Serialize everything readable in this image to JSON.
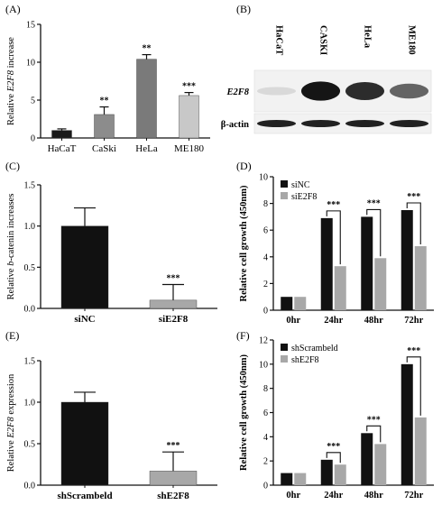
{
  "panel_labels": [
    "(A)",
    "(B)",
    "(C)",
    "(D)",
    "(E)",
    "(F)"
  ],
  "blot": {
    "lanes": [
      "HaCaT",
      "CASKI",
      "HeLa",
      "ME180"
    ],
    "rows": [
      {
        "label": "E2F8",
        "intensities": [
          0.08,
          0.95,
          0.85,
          0.6
        ]
      },
      {
        "label": "β-actin",
        "intensities": [
          0.9,
          0.9,
          0.9,
          0.9
        ]
      }
    ]
  },
  "chart_data": [
    {
      "panel": "A",
      "type": "bar",
      "ylabel_prefix": "Relative ",
      "ylabel_italic": "E2F8",
      "ylabel_suffix": " increase",
      "categories": [
        "HaCaT",
        "CaSki",
        "HeLa",
        "ME180"
      ],
      "values": [
        1.0,
        3.1,
        10.4,
        5.6
      ],
      "errors": [
        0.2,
        1.0,
        0.6,
        0.4
      ],
      "colors": [
        "#1a1a1a",
        "#8c8c8c",
        "#7a7a7a",
        "#c8c8c8"
      ],
      "significance": [
        "",
        "**",
        "**",
        "***"
      ],
      "ylim": [
        0,
        15
      ],
      "yticks": [
        0,
        5,
        10,
        15
      ]
    },
    {
      "panel": "C",
      "type": "bar",
      "ylabel_prefix": "Relative ",
      "ylabel_italic": "b",
      "ylabel_suffix": "-catenin increases",
      "categories": [
        "siNC",
        "siE2F8"
      ],
      "values": [
        1.0,
        0.1
      ],
      "errors": [
        0.22,
        0.19
      ],
      "colors": [
        "#111111",
        "#a8a8a8"
      ],
      "significance": [
        "",
        "***"
      ],
      "ylim": [
        0,
        1.5
      ],
      "yticks": [
        "0.0",
        "0.5",
        "1.0",
        "1.5"
      ]
    },
    {
      "panel": "D",
      "type": "bar",
      "ylabel": "Relative cell growth (450nm)",
      "categories": [
        "0hr",
        "24hr",
        "48hr",
        "72hr"
      ],
      "series": [
        {
          "name": "siNC",
          "values": [
            1.0,
            6.9,
            7.0,
            7.5
          ],
          "color": "#111111"
        },
        {
          "name": "siE2F8",
          "values": [
            1.0,
            3.3,
            3.9,
            4.8
          ],
          "color": "#a8a8a8"
        }
      ],
      "significance": [
        "",
        "***",
        "***",
        "***"
      ],
      "ylim": [
        0,
        10
      ],
      "yticks": [
        0,
        2,
        4,
        6,
        8,
        10
      ],
      "legend": "top-left"
    },
    {
      "panel": "E",
      "type": "bar",
      "ylabel_prefix": "Relative ",
      "ylabel_italic": "E2F8",
      "ylabel_suffix": " expression",
      "categories": [
        "shScrambeld",
        "shE2F8"
      ],
      "values": [
        1.0,
        0.17
      ],
      "errors": [
        0.12,
        0.23
      ],
      "colors": [
        "#111111",
        "#a8a8a8"
      ],
      "significance": [
        "",
        "***"
      ],
      "ylim": [
        0,
        1.5
      ],
      "yticks": [
        "0.0",
        "0.5",
        "1.0",
        "1.5"
      ]
    },
    {
      "panel": "F",
      "type": "bar",
      "ylabel": "Relative cell growth (450nm)",
      "categories": [
        "0hr",
        "24hr",
        "48hr",
        "72hr"
      ],
      "series": [
        {
          "name": "shScrambeld",
          "values": [
            1.0,
            2.1,
            4.3,
            10.0
          ],
          "color": "#111111"
        },
        {
          "name": "shE2F8",
          "values": [
            1.0,
            1.7,
            3.4,
            5.6
          ],
          "color": "#a8a8a8"
        }
      ],
      "significance": [
        "",
        "***",
        "***",
        "***"
      ],
      "ylim": [
        0,
        12
      ],
      "yticks": [
        0,
        2,
        4,
        6,
        8,
        10,
        12
      ],
      "legend": "top-left"
    }
  ]
}
